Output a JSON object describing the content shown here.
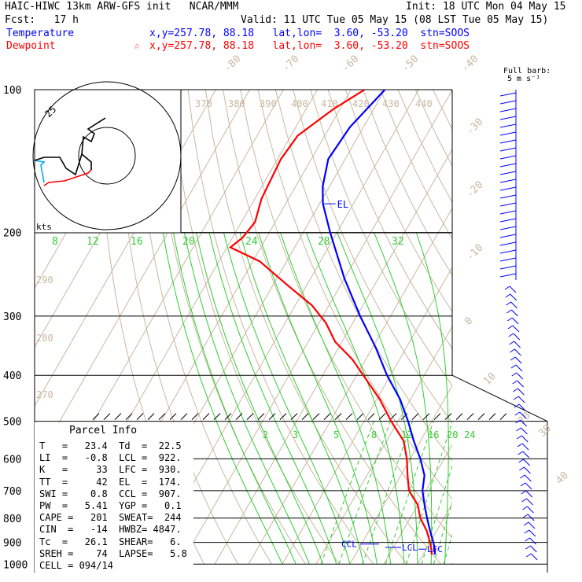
{
  "header": {
    "model_title": "HAIC-HIWC 13km ARW-GFS init   NCAR/MMM",
    "init_time": "Init: 18 UTC Mon 04 May 15",
    "forecast": "Fcst:   17 h",
    "valid_time": "Valid: 11 UTC Tue 05 May 15 (08 LST Tue 05 May 15)",
    "temperature_label": "Temperature",
    "temperature_info": "x,y=257.78, 88.18   lat,lon=  3.60, -53.20  stn=SOOS",
    "dewpoint_label": "Dewpoint",
    "dewpoint_marker": "☆",
    "dewpoint_info": "x,y=257.78, 88.18   lat,lon=  3.60, -53.20  stn=SOOS",
    "barb_legend_line1": "Full barb:",
    "barb_legend_line2": "5 m s⁻¹"
  },
  "hodograph": {
    "ring_label": "25",
    "units": "kts"
  },
  "parcel_info": {
    "title": "Parcel Info",
    "rows": [
      "T   =   23.4  Td  =  22.5",
      "LI  =   -0.8  LCL =  922.",
      "K   =     33  LFC =  930.",
      "TT  =     42  EL  =  174.",
      "SWI =    0.8  CCL =  907.",
      "PW  =   5.41  YGP =   0.1",
      "CAPE =   201  SWEAT=  244",
      "CIN  =   -14  HWBZ= 4847.",
      "Tc  =   26.1  SHEAR=   6.",
      "SREH =    74  LAPSE=   5.8",
      "CELL = 094/14"
    ]
  },
  "level_labels": {
    "el": "EL",
    "ccl": "CCL",
    "lcl": "LCL",
    "lfc": "LFC"
  },
  "chart_data": {
    "type": "line",
    "diagram": "skew-T log-P",
    "y_axis": {
      "scale": "log",
      "unit": "hPa",
      "ticks": [
        100,
        200,
        300,
        400,
        500,
        600,
        700,
        800,
        900,
        1000
      ],
      "ylim": [
        1000,
        100
      ]
    },
    "isotherm_labels": [
      -80,
      -70,
      -60,
      -50,
      -40,
      -30,
      -20,
      -10,
      0,
      10,
      20,
      30,
      40
    ],
    "dry_adiabat_labels": [
      {
        "value": 370,
        "p": 100
      },
      {
        "value": 380,
        "p": 100
      },
      {
        "value": 390,
        "p": 100
      },
      {
        "value": 400,
        "p": 100
      },
      {
        "value": 410,
        "p": 100
      },
      {
        "value": 420,
        "p": 100
      },
      {
        "value": 430,
        "p": 100
      },
      {
        "value": 440,
        "p": 100
      },
      {
        "value": 290,
        "p": 250
      },
      {
        "value": 280,
        "p": 340
      },
      {
        "value": 270,
        "p": 450
      }
    ],
    "mixing_ratio_labels_upper": [
      8,
      12,
      16,
      20,
      24,
      28,
      32
    ],
    "mixing_ratio_labels_lower": [
      2,
      3,
      5,
      8,
      12,
      16,
      20,
      24
    ],
    "series": [
      {
        "name": "Temperature",
        "color": "#0000ff",
        "points": [
          {
            "p": 100,
            "t": -70
          },
          {
            "p": 120,
            "t": -74
          },
          {
            "p": 140,
            "t": -75
          },
          {
            "p": 160,
            "t": -72
          },
          {
            "p": 174,
            "t": -69
          },
          {
            "p": 200,
            "t": -62
          },
          {
            "p": 250,
            "t": -50
          },
          {
            "p": 300,
            "t": -39
          },
          {
            "p": 350,
            "t": -29
          },
          {
            "p": 400,
            "t": -21
          },
          {
            "p": 450,
            "t": -13
          },
          {
            "p": 500,
            "t": -7
          },
          {
            "p": 550,
            "t": -2
          },
          {
            "p": 600,
            "t": 3
          },
          {
            "p": 650,
            "t": 7
          },
          {
            "p": 700,
            "t": 9
          },
          {
            "p": 750,
            "t": 12
          },
          {
            "p": 800,
            "t": 15
          },
          {
            "p": 850,
            "t": 18
          },
          {
            "p": 900,
            "t": 21
          },
          {
            "p": 940,
            "t": 23
          },
          {
            "p": 955,
            "t": 23.4
          }
        ]
      },
      {
        "name": "Dewpoint",
        "color": "#ff0000",
        "points": [
          {
            "p": 100,
            "t": -76
          },
          {
            "p": 110,
            "t": -82
          },
          {
            "p": 125,
            "t": -88
          },
          {
            "p": 140,
            "t": -89
          },
          {
            "p": 170,
            "t": -88
          },
          {
            "p": 190,
            "t": -86
          },
          {
            "p": 205,
            "t": -87
          },
          {
            "p": 215,
            "t": -89
          },
          {
            "p": 230,
            "t": -78
          },
          {
            "p": 260,
            "t": -65
          },
          {
            "p": 285,
            "t": -55
          },
          {
            "p": 310,
            "t": -48
          },
          {
            "p": 340,
            "t": -42
          },
          {
            "p": 370,
            "t": -34
          },
          {
            "p": 400,
            "t": -28
          },
          {
            "p": 450,
            "t": -19
          },
          {
            "p": 500,
            "t": -12
          },
          {
            "p": 550,
            "t": -5
          },
          {
            "p": 600,
            "t": -1
          },
          {
            "p": 650,
            "t": 2
          },
          {
            "p": 700,
            "t": 5
          },
          {
            "p": 750,
            "t": 10
          },
          {
            "p": 800,
            "t": 13
          },
          {
            "p": 850,
            "t": 17
          },
          {
            "p": 900,
            "t": 20
          },
          {
            "p": 940,
            "t": 22
          },
          {
            "p": 955,
            "t": 22.5
          }
        ]
      }
    ]
  }
}
